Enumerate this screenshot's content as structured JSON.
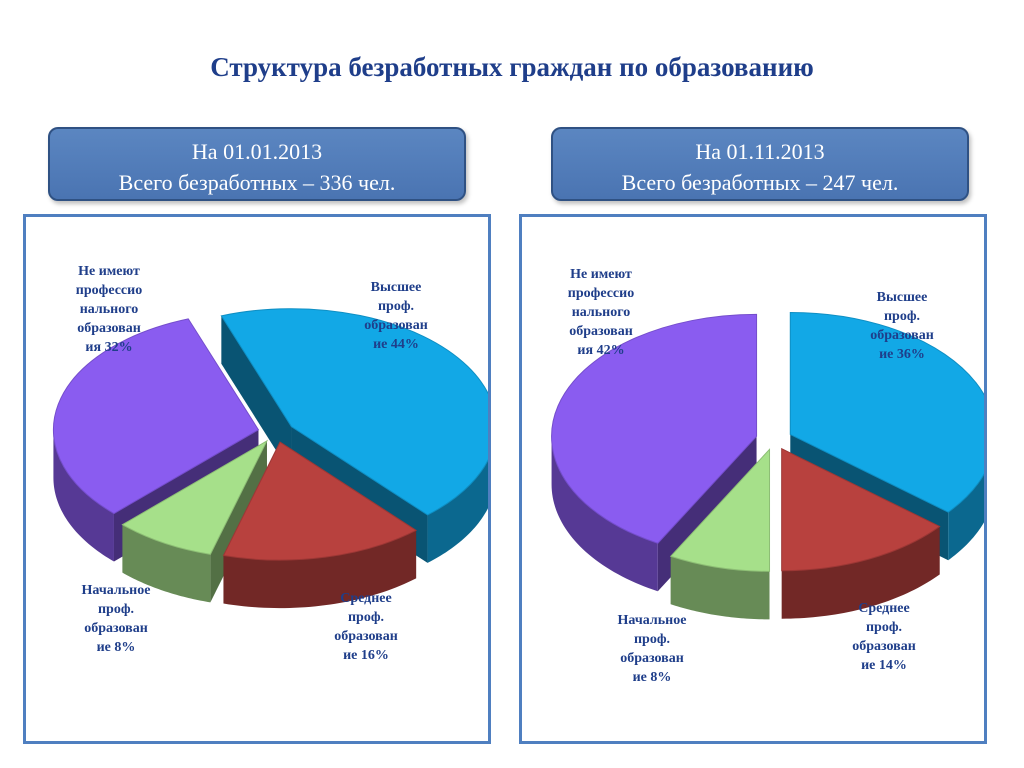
{
  "title": "Структура безработных граждан по образованию",
  "charts": [
    {
      "date": "На 01.01.2013",
      "total": "Всего безработных – 336 чел.",
      "labels": {
        "none": [
          "Не имеют",
          "профессио",
          "нального",
          "образован",
          "ия 32%"
        ],
        "higher": [
          "Высшее",
          "проф.",
          "образован",
          "ие 44%"
        ],
        "primary": [
          "Начальное",
          "проф.",
          "образован",
          "ие 8%"
        ],
        "secondary": [
          "Среднее",
          "проф.",
          "образован",
          "ие 16%"
        ]
      }
    },
    {
      "date": "На 01.11.2013",
      "total": "Всего безработных – 247 чел.",
      "labels": {
        "none": [
          "Не имеют",
          "профессио",
          "нального",
          "образован",
          "ия 42%"
        ],
        "higher": [
          "Высшее",
          "проф.",
          "образован",
          "ие 36%"
        ],
        "primary": [
          "Начальное",
          "проф.",
          "образован",
          "ие 8%"
        ],
        "secondary": [
          "Среднее",
          "проф.",
          "образован",
          "ие 14%"
        ]
      }
    }
  ],
  "chart_data": [
    {
      "type": "pie",
      "title": "На 01.01.2013",
      "categories": [
        "Высшее проф. образование",
        "Среднее проф. образование",
        "Начальное проф. образование",
        "Не имеют профессионального образования"
      ],
      "values": [
        44,
        16,
        8,
        32
      ],
      "colors": [
        "#12a8e6",
        "#b8413e",
        "#a6e08a",
        "#8a5cf0"
      ]
    },
    {
      "type": "pie",
      "title": "На 01.11.2013",
      "categories": [
        "Высшее проф. образование",
        "Среднее проф. образование",
        "Начальное проф. образование",
        "Не имеют профессионального образования"
      ],
      "values": [
        36,
        14,
        8,
        42
      ],
      "colors": [
        "#12a8e6",
        "#b8413e",
        "#a6e08a",
        "#8a5cf0"
      ]
    }
  ]
}
